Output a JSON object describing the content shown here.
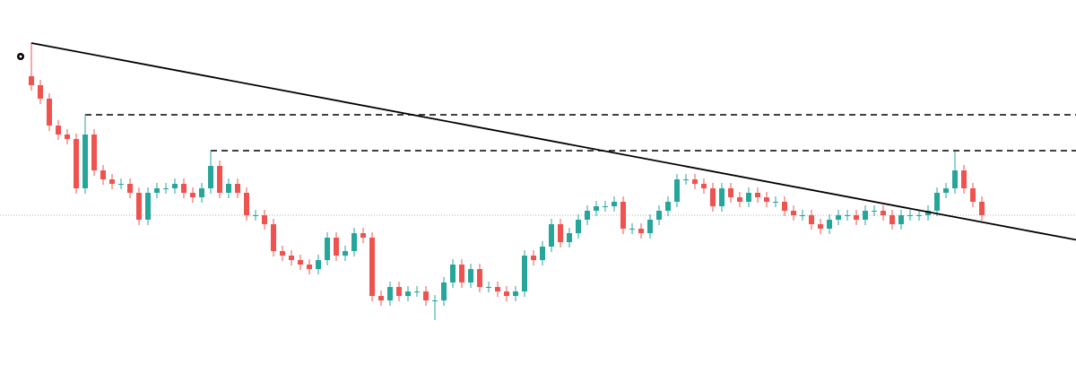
{
  "chart_data": {
    "type": "candlestick",
    "ylim": [
      0,
      407
    ],
    "up_color": "#26a69a",
    "down_color": "#ef5350",
    "open": [
      322,
      312,
      297,
      267,
      257,
      252,
      197,
      257,
      217,
      207,
      202,
      202,
      192,
      162,
      192,
      197,
      197,
      202,
      192,
      187,
      197,
      222,
      192,
      202,
      192,
      167,
      167,
      157,
      127,
      122,
      117,
      112,
      107,
      117,
      142,
      122,
      127,
      147,
      142,
      77,
      72,
      87,
      77,
      82,
      82,
      72,
      72,
      92,
      112,
      92,
      107,
      87,
      87,
      82,
      77,
      82,
      122,
      117,
      132,
      157,
      137,
      147,
      162,
      172,
      177,
      177,
      182,
      152,
      152,
      147,
      162,
      172,
      182,
      207,
      207,
      202,
      197,
      177,
      197,
      187,
      182,
      192,
      187,
      182,
      182,
      172,
      167,
      167,
      157,
      152,
      162,
      167,
      167,
      162,
      172,
      172,
      167,
      157,
      167,
      167,
      167,
      172,
      192,
      197,
      217,
      197,
      182
    ],
    "high": [
      359,
      318,
      303,
      273,
      263,
      258,
      279,
      263,
      223,
      213,
      208,
      208,
      198,
      198,
      203,
      203,
      208,
      208,
      198,
      203,
      239,
      228,
      208,
      208,
      198,
      173,
      173,
      163,
      133,
      128,
      123,
      118,
      123,
      148,
      148,
      133,
      153,
      153,
      148,
      83,
      93,
      93,
      88,
      88,
      88,
      78,
      98,
      118,
      118,
      113,
      113,
      93,
      93,
      88,
      88,
      128,
      128,
      138,
      163,
      163,
      153,
      168,
      178,
      183,
      183,
      188,
      188,
      158,
      158,
      168,
      178,
      188,
      213,
      213,
      213,
      208,
      203,
      203,
      203,
      193,
      198,
      198,
      193,
      188,
      188,
      178,
      173,
      173,
      163,
      168,
      173,
      173,
      173,
      178,
      178,
      178,
      173,
      173,
      173,
      173,
      178,
      198,
      203,
      238,
      223,
      203,
      188
    ],
    "low": [
      306,
      291,
      261,
      251,
      246,
      191,
      191,
      211,
      201,
      196,
      196,
      186,
      156,
      156,
      186,
      191,
      191,
      186,
      181,
      181,
      191,
      186,
      186,
      186,
      161,
      161,
      151,
      121,
      116,
      111,
      106,
      101,
      101,
      111,
      116,
      116,
      121,
      136,
      71,
      66,
      66,
      71,
      71,
      76,
      66,
      50,
      66,
      86,
      86,
      86,
      81,
      81,
      76,
      71,
      71,
      76,
      111,
      111,
      126,
      131,
      131,
      141,
      156,
      166,
      171,
      171,
      146,
      146,
      141,
      141,
      156,
      166,
      176,
      201,
      196,
      191,
      171,
      171,
      181,
      176,
      176,
      181,
      176,
      176,
      166,
      161,
      161,
      151,
      146,
      146,
      156,
      161,
      156,
      156,
      166,
      161,
      151,
      151,
      161,
      161,
      161,
      166,
      186,
      191,
      191,
      176,
      161
    ],
    "close": [
      312,
      297,
      267,
      257,
      252,
      197,
      257,
      217,
      207,
      202,
      202,
      192,
      162,
      192,
      197,
      197,
      202,
      192,
      187,
      197,
      222,
      192,
      202,
      192,
      167,
      167,
      157,
      127,
      122,
      117,
      112,
      107,
      117,
      142,
      122,
      127,
      147,
      142,
      77,
      72,
      87,
      77,
      82,
      82,
      72,
      72,
      92,
      112,
      92,
      107,
      87,
      87,
      82,
      77,
      82,
      122,
      117,
      132,
      157,
      137,
      147,
      162,
      172,
      177,
      177,
      182,
      152,
      152,
      147,
      162,
      172,
      182,
      207,
      207,
      202,
      197,
      177,
      197,
      187,
      182,
      192,
      187,
      182,
      182,
      172,
      167,
      167,
      157,
      152,
      162,
      167,
      167,
      162,
      172,
      172,
      167,
      157,
      167,
      167,
      167,
      172,
      192,
      197,
      217,
      197,
      182,
      167
    ],
    "trendline": {
      "x": [
        0,
        60
      ],
      "y": [
        359,
        246
      ],
      "color": "#000000"
    },
    "levels": [
      {
        "value": 279,
        "start": 6
      },
      {
        "value": 239,
        "start": 20
      }
    ]
  }
}
